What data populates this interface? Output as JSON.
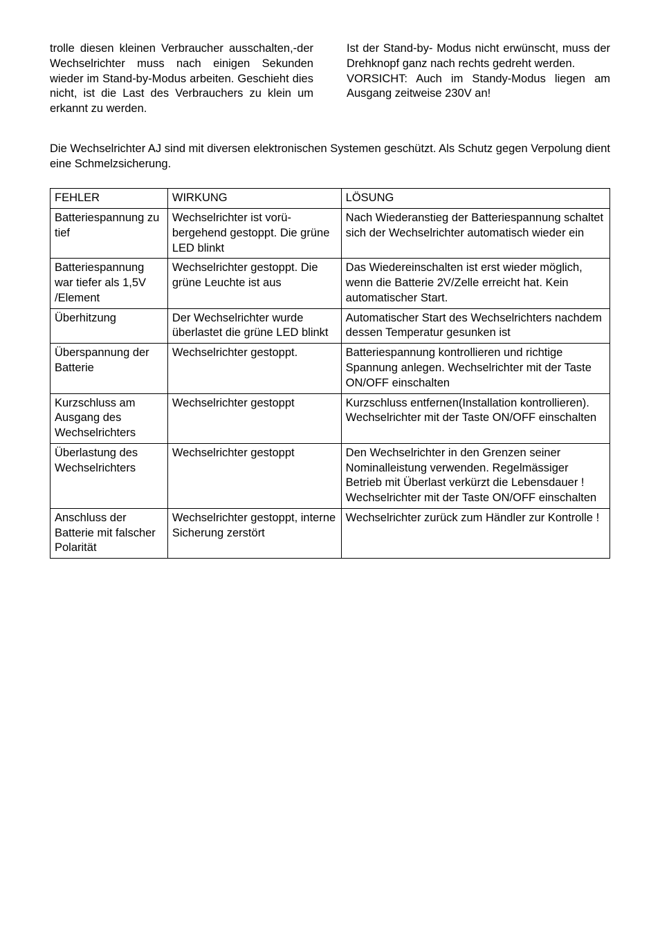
{
  "columns": {
    "left": "trolle diesen kleinen Verbraucher aus­schalten,-der Wechselrichter muss nach einigen Sekunden wieder im Stand-by-Modus arbeiten. Geschieht dies nicht, ist die Last des Verbrauchers zu klein um erkannt zu werden.",
    "right": "Ist der Stand-by- Modus nicht er­wünscht, muss der Drehknopf ganz nach rechts gedreht werden.\nVORSICHT: Auch im Standy-Modus liegen am Ausgang zeitweise 230V an!"
  },
  "intro": "Die Wechselrichter AJ sind mit diversen elektronischen Systemen geschützt. Als Schutz gegen Verpolung dient eine Schmelzsicherung.",
  "table": {
    "headers": [
      "FEHLER",
      "WIRKUNG",
      "LÖSUNG"
    ],
    "rows": [
      [
        "Batteriespannung zu tief",
        "Wechselrichter ist vorü­bergehend gestoppt. Die grüne LED blinkt",
        "Nach Wiederanstieg der Batteriespan­nung schaltet sich der Wechselrichter automatisch wieder ein"
      ],
      [
        "Batteriespannung war tiefer als 1,5V /Element",
        "Wechselrichter gestoppt. Die grüne Leuchte ist aus",
        "Das Wiedereinschalten ist erst wieder möglich, wenn die Batterie 2V/Zelle er­reicht hat. Kein automatischer Start."
      ],
      [
        "Überhitzung",
        "Der Wechselrichter wurde überlastet die grüne LED blinkt",
        "Automatischer Start des Wechselrich­ters nachdem dessen Temperatur ge­sunken ist"
      ],
      [
        "Überspannung der Batterie",
        "Wechselrichter gestoppt.",
        "Batteriespannung kontrollieren und richtige Spannung anlegen. Wechselrichter mit der Taste ON/OFF einschalten"
      ],
      [
        "Kurzschluss am Ausgang des Wechselrichters",
        "Wechselrichter gestoppt",
        "Kurzschluss entfernen(Installation kon­trollieren).\nWechselrichter mit der Taste ON/OFF einschalten"
      ],
      [
        "Überlastung des Wechselrichters",
        "Wechselrichter gestoppt",
        "Den Wechselrichter in den Grenzen seiner Nominalleistung verwenden. Re­gelmässiger Betrieb mit Überlast ver­kürzt die Lebensdauer !\nWechselrichter mit der Taste ON/OFF einschalten"
      ],
      [
        "Anschluss der Batterie mit fal­scher Polarität",
        "Wechselrichter gestoppt, interne Sicherung zerstört",
        "Wechselrichter zurück zum Händler zur Kontrolle !"
      ]
    ]
  }
}
